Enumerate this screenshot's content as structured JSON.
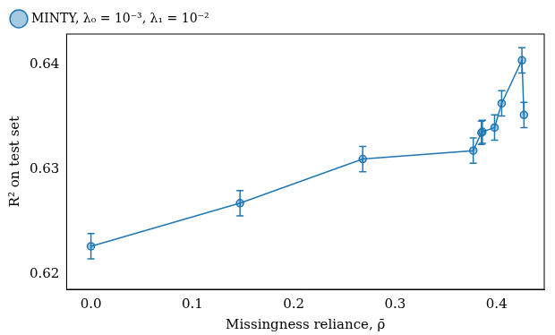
{
  "chart_data": {
    "type": "line",
    "x_label": "Missingness reliance, ρ̄",
    "y_label": "R² on test set",
    "xlim": [
      -0.024,
      0.447
    ],
    "ylim": [
      0.6186,
      0.6429
    ],
    "xticks": [
      {
        "value": 0,
        "label": "0.0"
      },
      0.1,
      0.2,
      0.3,
      0.4
    ],
    "yticks": [
      0.62,
      0.63,
      0.64
    ],
    "grid": false,
    "legend": "upper left",
    "x": [
      0.0,
      0.147,
      0.268,
      0.377,
      0.385,
      0.386,
      0.398,
      0.405,
      0.425,
      0.427
    ],
    "series": [
      {
        "name": "MINTY, λ₀ = 10⁻³, λ₁ = 10⁻²",
        "color": "#1f77b4",
        "marker": "circle",
        "values": [
          0.6227,
          0.6268,
          0.631,
          0.6318,
          0.6335,
          0.6336,
          0.634,
          0.6363,
          0.6404,
          0.6352
        ],
        "error": [
          0.0012,
          0.0012,
          0.0012,
          0.0012,
          0.0011,
          0.0011,
          0.0012,
          0.0012,
          0.0012,
          0.0012
        ]
      }
    ]
  }
}
